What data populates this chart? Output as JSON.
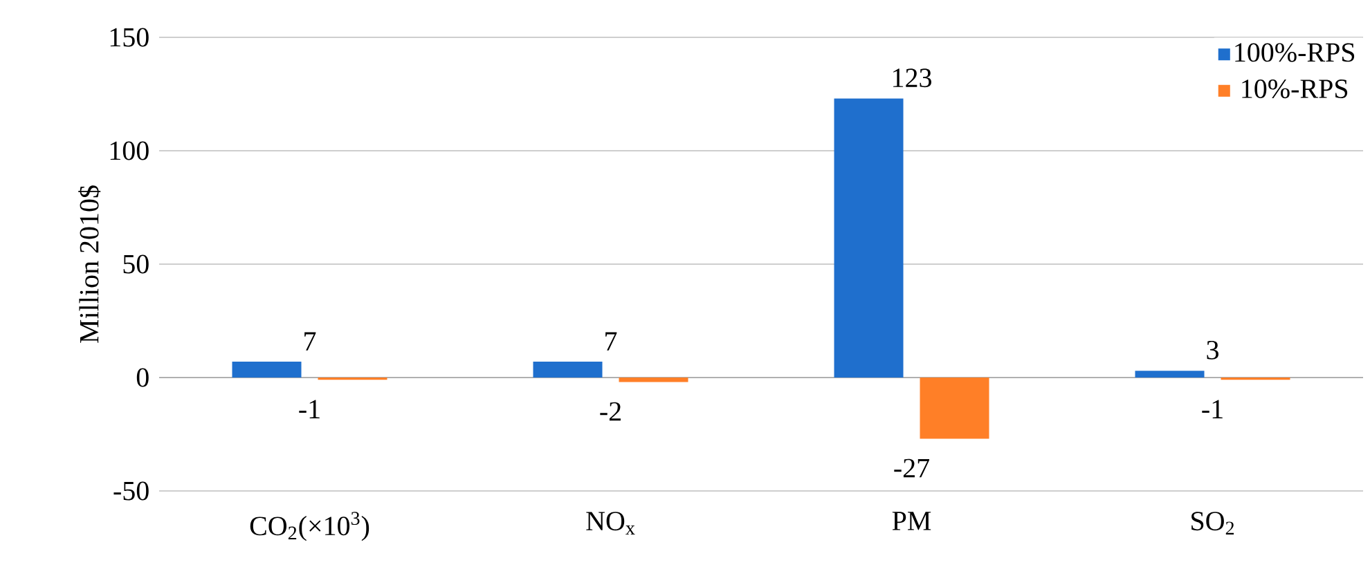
{
  "chart_data": {
    "type": "bar",
    "ylabel": "Million 2010$",
    "categories": [
      "CO$_{2}$(×10$^{3}$)",
      "NO$_{x}$",
      "PM",
      "SO$_{2}$"
    ],
    "series": [
      {
        "name": "100%-RPS",
        "color": "#1f6fcd",
        "values": [
          7,
          7,
          123,
          3
        ]
      },
      {
        "name": "10%-RPS",
        "color": "#ff7f27",
        "values": [
          -1,
          -2,
          -27,
          -1
        ]
      }
    ],
    "ylim": [
      -50,
      150
    ],
    "yticks": [
      -50,
      0,
      50,
      100,
      150
    ],
    "grid": "y",
    "legend": "top right",
    "data_labels": true
  }
}
